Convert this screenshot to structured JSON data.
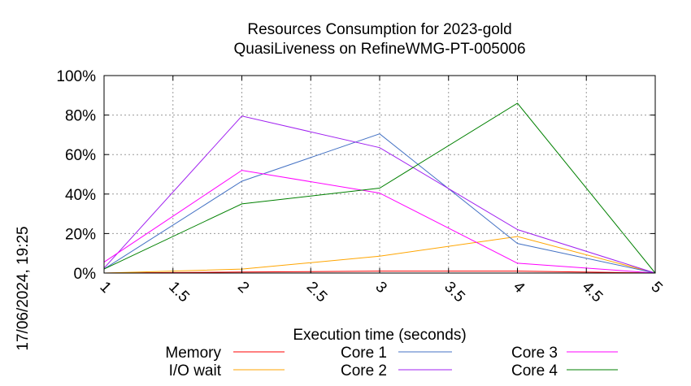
{
  "chart_data": {
    "type": "line",
    "title": "Resources Consumption for 2023-gold",
    "subtitle": "QuasiLiveness on RefineWMG-PT-005006",
    "xlabel": "Execution time (seconds)",
    "ylabel": "",
    "side_label": "17/06/2024, 19:25",
    "xlim": [
      1,
      5
    ],
    "ylim": [
      0,
      100
    ],
    "x_ticks": [
      "1",
      "1.5",
      "2",
      "2.5",
      "3",
      "3.5",
      "4",
      "4.5",
      "5"
    ],
    "y_ticks": [
      "0%",
      "20%",
      "40%",
      "60%",
      "80%",
      "100%"
    ],
    "grid": true,
    "legend_position": "bottom",
    "x": [
      1,
      2,
      3,
      4,
      5
    ],
    "series": [
      {
        "name": "Memory",
        "color": "#ff0000",
        "values": [
          0,
          0.5,
          1,
          1,
          0
        ]
      },
      {
        "name": "I/O wait",
        "color": "#ffa500",
        "values": [
          0,
          2,
          8.5,
          18.5,
          0
        ]
      },
      {
        "name": "Core 1",
        "color": "#4472c4",
        "values": [
          2,
          46.5,
          70.5,
          15,
          0
        ]
      },
      {
        "name": "Core 2",
        "color": "#a020f0",
        "values": [
          2.5,
          79.5,
          63.5,
          22,
          0
        ]
      },
      {
        "name": "Core 3",
        "color": "#ff00ff",
        "values": [
          5.5,
          52,
          40.5,
          5,
          0
        ]
      },
      {
        "name": "Core 4",
        "color": "#008000",
        "values": [
          2,
          35,
          43,
          86,
          0
        ]
      }
    ]
  }
}
